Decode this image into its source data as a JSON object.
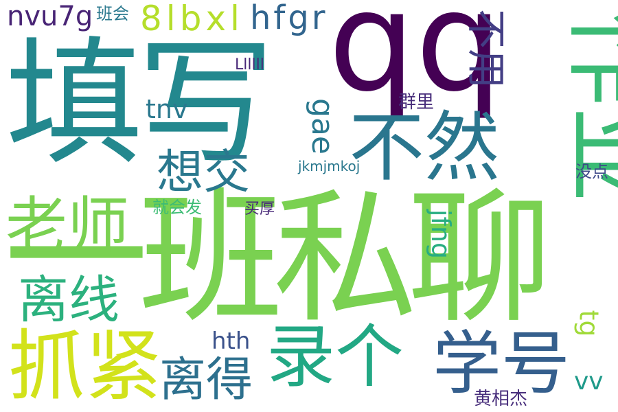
{
  "words": [
    {
      "id": "w01",
      "text": "填写",
      "color": "#23888e"
    },
    {
      "id": "w02",
      "text": "qq",
      "color": "#440154"
    },
    {
      "id": "w03",
      "text": "一班私聊",
      "color": "#7ad151"
    },
    {
      "id": "w04",
      "text": "作业",
      "color": "#3bbb75"
    },
    {
      "id": "w05",
      "text": "不然",
      "color": "#2a768e"
    },
    {
      "id": "w06",
      "text": "不用",
      "color": "#433e85"
    },
    {
      "id": "w07",
      "text": "老师",
      "color": "#7ad151"
    },
    {
      "id": "w08",
      "text": "抓紧",
      "color": "#d2e21b"
    },
    {
      "id": "w09",
      "text": "录个",
      "color": "#22a884"
    },
    {
      "id": "w10",
      "text": "学号",
      "color": "#355f8d"
    },
    {
      "id": "w11",
      "text": "离线",
      "color": "#2cb17e"
    },
    {
      "id": "w12",
      "text": "想交",
      "color": "#2a788e"
    },
    {
      "id": "w13",
      "text": "离得",
      "color": "#2d708e"
    },
    {
      "id": "w14",
      "text": "8lbxl",
      "color": "#b5de2b"
    },
    {
      "id": "w15",
      "text": "hfgr",
      "color": "#32658e"
    },
    {
      "id": "w16",
      "text": "nvu7g",
      "color": "#482475"
    },
    {
      "id": "w17",
      "text": "班会",
      "color": "#2a788e"
    },
    {
      "id": "w18",
      "text": "gae",
      "color": "#2a788e"
    },
    {
      "id": "w19",
      "text": "tnv",
      "color": "#2a788e"
    },
    {
      "id": "w20",
      "text": "Llllll",
      "color": "#482878"
    },
    {
      "id": "w21",
      "text": "群里",
      "color": "#472c7a"
    },
    {
      "id": "w22",
      "text": "jkmjmkoj",
      "color": "#2a788e"
    },
    {
      "id": "w23",
      "text": "jfng",
      "color": "#27ad81"
    },
    {
      "id": "w24",
      "text": "就会发",
      "color": "#3dbc74"
    },
    {
      "id": "w25",
      "text": "买厚",
      "color": "#482878"
    },
    {
      "id": "w26",
      "text": "hth",
      "color": "#3b528b"
    },
    {
      "id": "w27",
      "text": "没点",
      "color": "#3e4a89"
    },
    {
      "id": "w28",
      "text": "tg",
      "color": "#a0da39"
    },
    {
      "id": "w29",
      "text": "vv",
      "color": "#1f9a8a"
    },
    {
      "id": "w30",
      "text": "黄相杰",
      "color": "#472d7b"
    }
  ]
}
